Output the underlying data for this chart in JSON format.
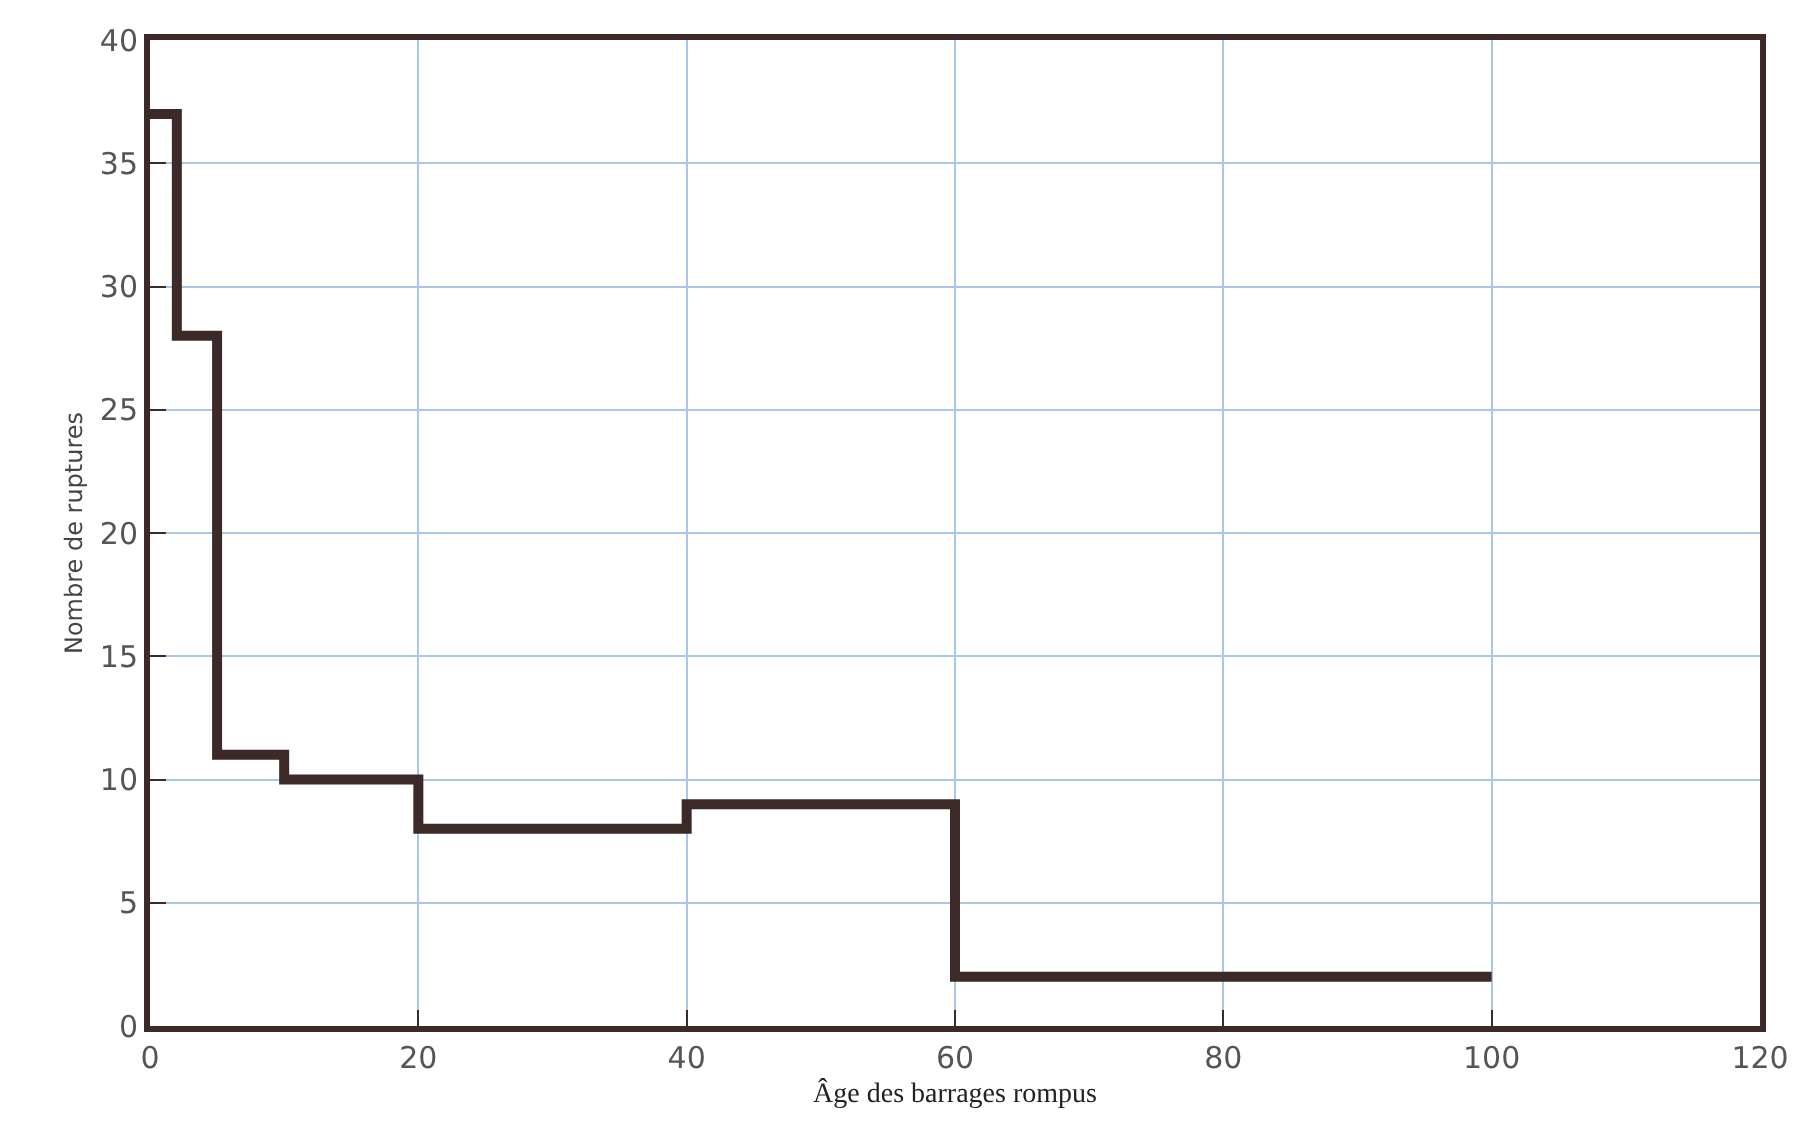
{
  "chart_data": {
    "type": "step",
    "xlabel": "Âge des barrages rompus",
    "ylabel": "Nombre de ruptures",
    "x": [
      0,
      2,
      5,
      10,
      20,
      40,
      60,
      100
    ],
    "series": [
      {
        "color": "#3b2a28",
        "values": [
          37,
          28,
          11,
          10,
          8,
          9,
          2,
          2
        ]
      }
    ],
    "xlim": [
      0,
      120
    ],
    "xticks": [
      0,
      20,
      40,
      60,
      80,
      100,
      120
    ],
    "ylim": [
      0,
      40
    ],
    "yticks": [
      0,
      5,
      10,
      15,
      20,
      25,
      30,
      35,
      40
    ],
    "grid": true,
    "marker": "none",
    "line_style": "solid"
  }
}
